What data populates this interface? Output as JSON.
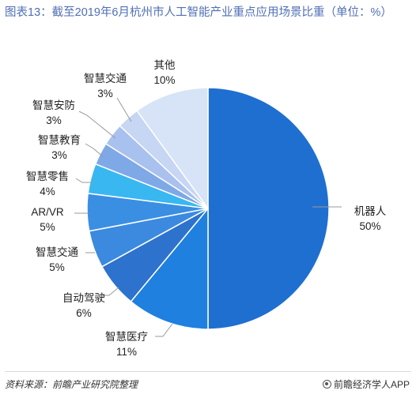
{
  "title": "图表13：截至2019年6月杭州市人工智能产业重点应用场景比重（单位：%）",
  "source": "资料来源：前瞻产业研究院整理",
  "brand": "前瞻经济学人APP",
  "chart_data": {
    "type": "pie",
    "unit": "%",
    "slices": [
      {
        "label": "机器人",
        "value": 50,
        "value_label": "50%",
        "color": "#1f6fd0"
      },
      {
        "label": "智慧医疗",
        "value": 11,
        "value_label": "11%",
        "color": "#1f80e0"
      },
      {
        "label": "自动驾驶",
        "value": 6,
        "value_label": "6%",
        "color": "#2d72cc"
      },
      {
        "label": "智慧交通",
        "value": 5,
        "value_label": "5%",
        "color": "#3b8ae0"
      },
      {
        "label": "AR/VR",
        "value": 5,
        "value_label": "5%",
        "color": "#3a8fe3"
      },
      {
        "label": "智慧零售",
        "value": 4,
        "value_label": "4%",
        "color": "#39b7f1"
      },
      {
        "label": "智慧教育",
        "value": 3,
        "value_label": "3%",
        "color": "#7fa8e6"
      },
      {
        "label": "智慧安防",
        "value": 3,
        "value_label": "3%",
        "color": "#a9c1ee"
      },
      {
        "label": "智慧交通",
        "value": 3,
        "value_label": "3%",
        "color": "#c6d6f3"
      },
      {
        "label": "其他",
        "value": 10,
        "value_label": "10%",
        "color": "#d7e4f7"
      }
    ]
  }
}
